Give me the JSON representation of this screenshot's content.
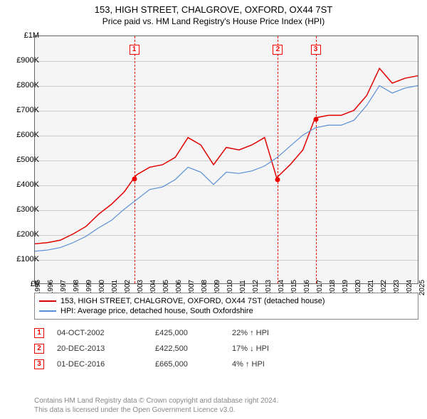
{
  "title": "153, HIGH STREET, CHALGROVE, OXFORD, OX44 7ST",
  "subtitle": "Price paid vs. HM Land Registry's House Price Index (HPI)",
  "chart": {
    "type": "line",
    "plot_background": "#f5f5f5",
    "border_color": "#666666",
    "grid_color": "#cccccc",
    "ylim": [
      0,
      1000000
    ],
    "ytick_step": 100000,
    "ytick_labels": [
      "£0",
      "£100K",
      "£200K",
      "£300K",
      "£400K",
      "£500K",
      "£600K",
      "£700K",
      "£800K",
      "£900K",
      "£1M"
    ],
    "x_years": [
      1995,
      1996,
      1997,
      1998,
      1999,
      2000,
      2001,
      2002,
      2003,
      2004,
      2005,
      2006,
      2007,
      2008,
      2009,
      2010,
      2011,
      2012,
      2013,
      2014,
      2015,
      2016,
      2017,
      2018,
      2019,
      2020,
      2021,
      2022,
      2023,
      2024,
      2025
    ],
    "series": [
      {
        "name": "153, HIGH STREET, CHALGROVE, OXFORD, OX44 7ST (detached house)",
        "color": "#e00000",
        "line_width": 1.5,
        "values_by_year": {
          "1995": 160000,
          "1996": 165000,
          "1997": 175000,
          "1998": 200000,
          "1999": 230000,
          "2000": 280000,
          "2001": 320000,
          "2002": 370000,
          "2002.75": 425000,
          "2003": 440000,
          "2004": 470000,
          "2005": 480000,
          "2006": 510000,
          "2007": 590000,
          "2008": 560000,
          "2009": 480000,
          "2010": 550000,
          "2011": 540000,
          "2012": 560000,
          "2013": 590000,
          "2013.97": 422500,
          "2014": 430000,
          "2015": 480000,
          "2016": 540000,
          "2016.92": 665000,
          "2017": 670000,
          "2018": 680000,
          "2019": 680000,
          "2020": 700000,
          "2021": 760000,
          "2022": 870000,
          "2023": 810000,
          "2024": 830000,
          "2025": 840000
        }
      },
      {
        "name": "HPI: Average price, detached house, South Oxfordshire",
        "color": "#5a8fd6",
        "line_width": 1.2,
        "values_by_year": {
          "1995": 130000,
          "1996": 135000,
          "1997": 145000,
          "1998": 165000,
          "1999": 190000,
          "2000": 225000,
          "2001": 255000,
          "2002": 300000,
          "2003": 340000,
          "2004": 380000,
          "2005": 390000,
          "2006": 420000,
          "2007": 470000,
          "2008": 450000,
          "2009": 400000,
          "2010": 450000,
          "2011": 445000,
          "2012": 455000,
          "2013": 475000,
          "2014": 510000,
          "2015": 555000,
          "2016": 600000,
          "2017": 630000,
          "2018": 640000,
          "2019": 640000,
          "2020": 660000,
          "2021": 720000,
          "2022": 800000,
          "2023": 770000,
          "2024": 790000,
          "2025": 800000
        }
      }
    ],
    "sale_markers": [
      {
        "flag": "1",
        "year": 2002.75,
        "value": 425000
      },
      {
        "flag": "2",
        "year": 2013.97,
        "value": 422500
      },
      {
        "flag": "3",
        "year": 2016.92,
        "value": 665000
      }
    ]
  },
  "legend": {
    "rows": [
      {
        "color": "#e00000",
        "label": "153, HIGH STREET, CHALGROVE, OXFORD, OX44 7ST (detached house)"
      },
      {
        "color": "#5a8fd6",
        "label": "HPI: Average price, detached house, South Oxfordshire"
      }
    ]
  },
  "sales_table": [
    {
      "flag": "1",
      "date": "04-OCT-2002",
      "price": "£425,000",
      "delta": "22% ↑ HPI"
    },
    {
      "flag": "2",
      "date": "20-DEC-2013",
      "price": "£422,500",
      "delta": "17% ↓ HPI"
    },
    {
      "flag": "3",
      "date": "01-DEC-2016",
      "price": "£665,000",
      "delta": "4% ↑ HPI"
    }
  ],
  "attribution": {
    "line1": "Contains HM Land Registry data © Crown copyright and database right 2024.",
    "line2": "This data is licensed under the Open Government Licence v3.0."
  }
}
